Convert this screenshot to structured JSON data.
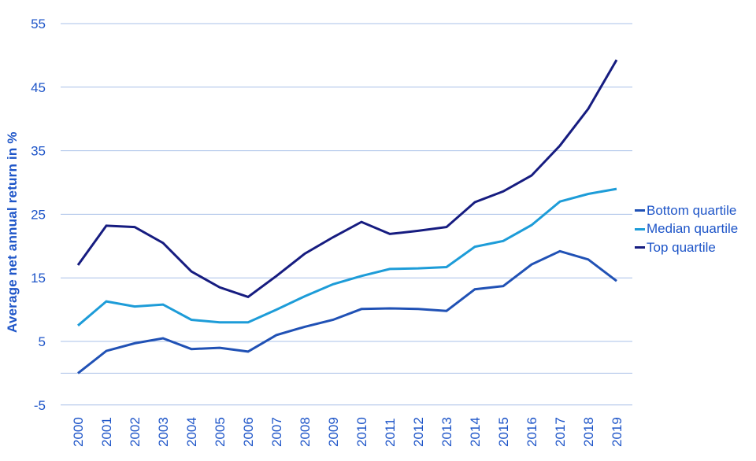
{
  "chart_data": {
    "type": "line",
    "title": "",
    "ylabel": "Average net annual return in %",
    "xlabel": "",
    "x": [
      2000,
      2001,
      2002,
      2003,
      2004,
      2005,
      2006,
      2007,
      2008,
      2009,
      2010,
      2011,
      2012,
      2013,
      2014,
      2015,
      2016,
      2017,
      2018,
      2019
    ],
    "yticks": [
      55,
      45,
      35,
      25,
      15,
      5,
      -5
    ],
    "gridlines": [
      55,
      45,
      35,
      25,
      15,
      5,
      0,
      -5
    ],
    "ylim": [
      -5,
      55
    ],
    "grid": "horizontal",
    "legend_position": "right",
    "series": [
      {
        "name": "Bottom quartile",
        "color": "#2051b5",
        "values": [
          0.0,
          3.5,
          4.7,
          5.5,
          3.8,
          4.0,
          3.4,
          6.0,
          7.3,
          8.4,
          10.1,
          10.2,
          10.1,
          9.8,
          13.2,
          13.7,
          17.1,
          19.2,
          17.9,
          14.5
        ]
      },
      {
        "name": "Median quartile",
        "color": "#1d9cd8",
        "values": [
          7.5,
          11.3,
          10.5,
          10.8,
          8.4,
          8.0,
          8.0,
          10.0,
          12.1,
          14.0,
          15.3,
          16.4,
          16.5,
          16.7,
          19.9,
          20.8,
          23.3,
          27.0,
          28.2,
          29.0
        ]
      },
      {
        "name": "Top quartile",
        "color": "#161c80",
        "values": [
          17.0,
          23.2,
          23.0,
          20.5,
          16.0,
          13.5,
          12.0,
          15.3,
          18.8,
          21.4,
          23.8,
          21.9,
          22.4,
          23.0,
          26.9,
          28.6,
          31.1,
          35.8,
          41.6,
          49.3
        ]
      }
    ]
  },
  "colors": {
    "text": "#1e55c8",
    "grid": "#a9c0e8",
    "background": "#ffffff"
  }
}
